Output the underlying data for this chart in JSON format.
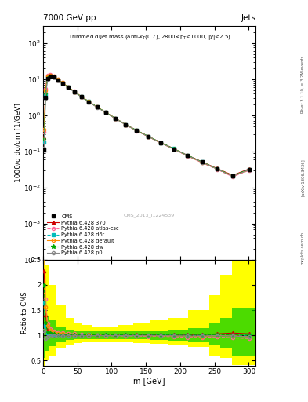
{
  "title_top": "7000 GeV pp",
  "title_right": "Jets",
  "ylabel_main": "1000/σ dσ/dm [1/GeV]",
  "ylabel_ratio": "Ratio to CMS",
  "xlabel": "m [GeV]",
  "watermark": "CMS_2013_I1224539",
  "rivet_text": "Rivet 3.1.10, ≥ 3.2M events",
  "arxiv_text": "[arXiv:1306.3436]",
  "mcplots_text": "mcplots.cern.ch",
  "cms_data_x": [
    1.5,
    3.5,
    6.5,
    10.5,
    15.5,
    21.5,
    28.5,
    36.5,
    45.5,
    55.5,
    66.5,
    78.5,
    91.5,
    105.5,
    120.5,
    136.5,
    153.5,
    171.5,
    190.5,
    210.5,
    231.5,
    253.5,
    276.5,
    300.5
  ],
  "cms_data_y": [
    0.11,
    3.2,
    10.5,
    12.0,
    11.5,
    9.5,
    7.8,
    6.0,
    4.5,
    3.3,
    2.4,
    1.7,
    1.2,
    0.82,
    0.55,
    0.38,
    0.26,
    0.175,
    0.118,
    0.078,
    0.051,
    0.033,
    0.021,
    0.032
  ],
  "pythia_370_y": [
    0.25,
    4.5,
    11.5,
    12.8,
    11.8,
    9.8,
    8.0,
    6.1,
    4.6,
    3.35,
    2.45,
    1.72,
    1.22,
    0.83,
    0.56,
    0.385,
    0.263,
    0.178,
    0.12,
    0.079,
    0.052,
    0.034,
    0.022,
    0.033
  ],
  "pythia_atlas_y": [
    0.35,
    5.5,
    13.0,
    13.5,
    12.5,
    10.2,
    8.2,
    6.2,
    4.65,
    3.35,
    2.42,
    1.7,
    1.2,
    0.81,
    0.545,
    0.375,
    0.255,
    0.172,
    0.115,
    0.075,
    0.049,
    0.032,
    0.02,
    0.03
  ],
  "pythia_d6t_y": [
    0.18,
    3.8,
    11.0,
    12.5,
    11.8,
    9.7,
    7.9,
    6.05,
    4.55,
    3.32,
    2.43,
    1.71,
    1.21,
    0.825,
    0.555,
    0.382,
    0.261,
    0.176,
    0.119,
    0.078,
    0.051,
    0.033,
    0.021,
    0.032
  ],
  "pythia_default_y": [
    0.4,
    5.0,
    12.5,
    13.2,
    12.2,
    9.9,
    8.1,
    6.15,
    4.62,
    3.34,
    2.43,
    1.71,
    1.21,
    0.82,
    0.55,
    0.38,
    0.258,
    0.174,
    0.117,
    0.077,
    0.05,
    0.033,
    0.021,
    0.031
  ],
  "pythia_dw_y": [
    0.22,
    4.0,
    11.2,
    12.6,
    11.9,
    9.75,
    7.95,
    6.08,
    4.57,
    3.33,
    2.44,
    1.715,
    1.215,
    0.828,
    0.558,
    0.384,
    0.262,
    0.177,
    0.119,
    0.0785,
    0.0515,
    0.0335,
    0.0212,
    0.0322
  ],
  "pythia_p0_y": [
    0.12,
    3.0,
    10.2,
    11.8,
    11.4,
    9.4,
    7.72,
    5.95,
    4.48,
    3.27,
    2.39,
    1.685,
    1.195,
    0.815,
    0.548,
    0.378,
    0.258,
    0.174,
    0.117,
    0.077,
    0.0505,
    0.0328,
    0.0208,
    0.031
  ],
  "band_edges": [
    0,
    3,
    9,
    18,
    33,
    45,
    57,
    72,
    90,
    110,
    132,
    156,
    183,
    212,
    242,
    258,
    276,
    310
  ],
  "yellow_lo": [
    0.4,
    0.5,
    0.6,
    0.75,
    0.82,
    0.85,
    0.86,
    0.87,
    0.87,
    0.88,
    0.85,
    0.83,
    0.8,
    0.77,
    0.6,
    0.55,
    0.42,
    0.42
  ],
  "yellow_hi": [
    2.6,
    2.4,
    2.0,
    1.6,
    1.35,
    1.25,
    1.2,
    1.18,
    1.18,
    1.2,
    1.25,
    1.3,
    1.35,
    1.5,
    1.8,
    2.2,
    2.6,
    2.6
  ],
  "green_lo": [
    0.55,
    0.7,
    0.78,
    0.87,
    0.91,
    0.92,
    0.92,
    0.93,
    0.93,
    0.93,
    0.92,
    0.91,
    0.9,
    0.88,
    0.8,
    0.75,
    0.6,
    0.55
  ],
  "green_hi": [
    1.5,
    1.4,
    1.3,
    1.18,
    1.12,
    1.1,
    1.09,
    1.08,
    1.08,
    1.08,
    1.09,
    1.1,
    1.12,
    1.15,
    1.25,
    1.35,
    1.55,
    1.6
  ],
  "color_370": "#cc0000",
  "color_atlas": "#ff6699",
  "color_d6t": "#00bbbb",
  "color_default": "#ff8c00",
  "color_dw": "#00aa00",
  "color_p0": "#888888",
  "xlim": [
    0,
    310
  ],
  "ylim_main": [
    0.0001,
    300
  ],
  "ylim_ratio": [
    0.4,
    2.5
  ]
}
